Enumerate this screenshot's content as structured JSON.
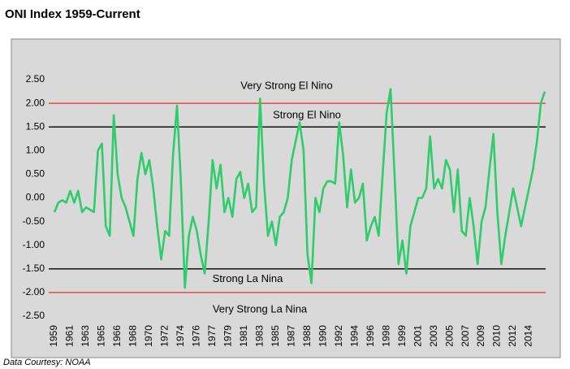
{
  "chart_data": {
    "type": "line",
    "title": "ONI Index 1959-Current",
    "source": "Data Courtesy: NOAA",
    "categories": [
      "1959",
      null,
      null,
      null,
      "1961",
      null,
      null,
      null,
      "1963",
      null,
      null,
      null,
      "1965",
      null,
      null,
      null,
      "1966",
      null,
      null,
      null,
      "1968",
      null,
      null,
      null,
      "1970",
      null,
      null,
      null,
      "1972",
      null,
      null,
      null,
      "1974",
      null,
      null,
      null,
      "1976",
      null,
      null,
      null,
      "1977",
      null,
      null,
      null,
      "1979",
      null,
      null,
      null,
      "1981",
      null,
      null,
      null,
      "1983",
      null,
      null,
      null,
      "1985",
      null,
      null,
      null,
      "1987",
      null,
      null,
      null,
      "1988",
      null,
      null,
      null,
      "1990",
      null,
      null,
      null,
      "1992",
      null,
      null,
      null,
      "1994",
      null,
      null,
      null,
      "1996",
      null,
      null,
      null,
      "1998",
      null,
      null,
      null,
      "1999",
      null,
      null,
      null,
      "2001",
      null,
      null,
      null,
      "2003",
      null,
      null,
      null,
      "2005",
      null,
      null,
      null,
      "2007",
      null,
      null,
      null,
      "2009",
      null,
      null,
      null,
      "2010",
      null,
      null,
      null,
      "2012",
      null,
      null,
      null,
      "2014",
      null,
      null,
      null,
      null
    ],
    "values": [
      -0.3,
      -0.1,
      -0.05,
      -0.1,
      0.15,
      -0.1,
      0.15,
      -0.3,
      -0.2,
      -0.25,
      -0.3,
      1.0,
      1.15,
      -0.6,
      -0.8,
      1.75,
      0.5,
      0.0,
      -0.2,
      -0.5,
      -0.8,
      0.4,
      0.95,
      0.5,
      0.8,
      0.2,
      -0.6,
      -1.3,
      -0.7,
      -0.8,
      0.9,
      1.95,
      0.3,
      -1.9,
      -0.8,
      -0.4,
      -0.7,
      -1.2,
      -1.6,
      -0.5,
      0.8,
      0.2,
      0.7,
      -0.3,
      0.0,
      -0.4,
      0.4,
      0.55,
      0.0,
      0.3,
      -0.3,
      -0.2,
      2.1,
      0.3,
      -0.8,
      -0.5,
      -1.0,
      -0.4,
      -0.3,
      0.0,
      0.8,
      1.2,
      1.6,
      1.0,
      -1.2,
      -1.8,
      0.0,
      -0.3,
      0.2,
      0.35,
      0.35,
      0.3,
      1.6,
      0.9,
      -0.2,
      0.6,
      -0.1,
      0.0,
      0.3,
      -0.9,
      -0.6,
      -0.4,
      -0.8,
      0.5,
      1.8,
      2.3,
      0.5,
      -1.4,
      -0.9,
      -1.6,
      -0.6,
      -0.3,
      0.0,
      0.0,
      0.2,
      1.3,
      0.2,
      0.4,
      0.2,
      0.8,
      0.6,
      -0.3,
      0.6,
      -0.7,
      -0.8,
      0.0,
      -0.6,
      -1.4,
      -0.5,
      -0.2,
      0.6,
      1.35,
      -0.3,
      -1.4,
      -0.8,
      -0.3,
      0.2,
      -0.2,
      -0.6,
      -0.2,
      0.2,
      0.6,
      1.2,
      2.0,
      2.25
    ],
    "color": "#2fcc6b",
    "ylim": [
      -2.5,
      2.5
    ],
    "yticks": [
      {
        "value": -2.5,
        "label": "-2.50"
      },
      {
        "value": -2.0,
        "label": "-2.00"
      },
      {
        "value": -1.5,
        "label": "-1.50"
      },
      {
        "value": -1.0,
        "label": "-1.00"
      },
      {
        "value": -0.5,
        "label": "-0.50"
      },
      {
        "value": 0.0,
        "label": "0.00"
      },
      {
        "value": 0.5,
        "label": "0.50"
      },
      {
        "value": 1.0,
        "label": "1.00"
      },
      {
        "value": 1.5,
        "label": "1.50"
      },
      {
        "value": 2.0,
        "label": "2.00"
      },
      {
        "value": 2.5,
        "label": "2.50"
      }
    ],
    "grid": false,
    "reference_lines": [
      {
        "value": 2.0,
        "color": "#e0302a",
        "label": "Very Strong El Nino"
      },
      {
        "value": 1.5,
        "color": "#000000",
        "label": "Strong El Nino"
      },
      {
        "value": -1.5,
        "color": "#000000",
        "label": "Strong La Nina"
      },
      {
        "value": -2.0,
        "color": "#e0302a",
        "label": "Very Strong La Nina"
      }
    ]
  }
}
